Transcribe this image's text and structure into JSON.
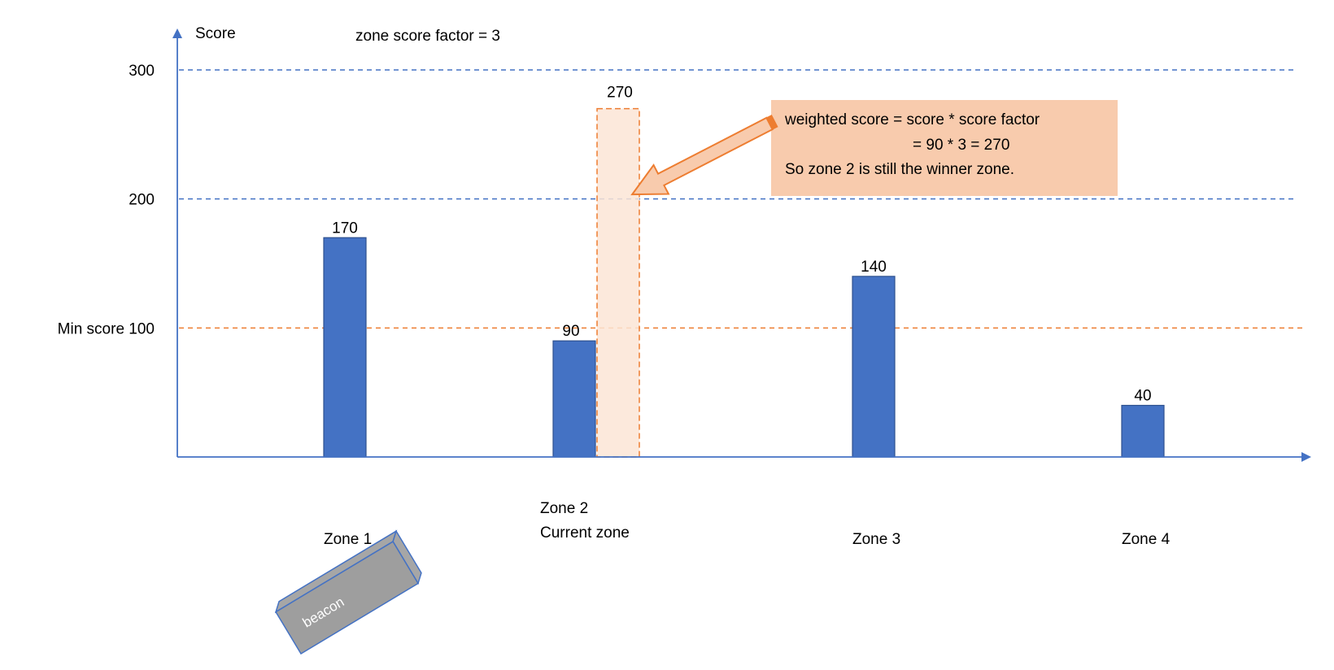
{
  "chart_data": {
    "type": "bar",
    "ylabel": "Score",
    "factor_label": "zone score factor = 3",
    "y_ticks": [
      {
        "value": 300,
        "label": "300"
      },
      {
        "value": 200,
        "label": "200"
      },
      {
        "value": 100,
        "label": "Min score  100"
      }
    ],
    "ylim": [
      0,
      300
    ],
    "reference_lines": [
      {
        "value": 300,
        "color": "#4472c4"
      },
      {
        "value": 200,
        "color": "#4472c4"
      },
      {
        "value": 100,
        "color": "#ed7d31"
      }
    ],
    "categories": [
      "Zone 1",
      "Zone 2",
      "Zone 3",
      "Zone 4"
    ],
    "category_sublabels": [
      "",
      "Current zone",
      "",
      ""
    ],
    "values": [
      170,
      90,
      140,
      40
    ],
    "value_labels": [
      "170",
      "90",
      "140",
      "40"
    ],
    "weighted": {
      "category": "Zone 2",
      "value": 270,
      "label": "270"
    },
    "bar_color": "#4472c4",
    "weighted_color": "#ed7d31"
  },
  "annotation": {
    "lines": [
      "weighted score = score * score factor",
      "= 90 * 3 = 270",
      "So zone 2 is still the winner zone."
    ],
    "fill": "#f8cbad"
  },
  "beacon": {
    "label": "beacon"
  }
}
